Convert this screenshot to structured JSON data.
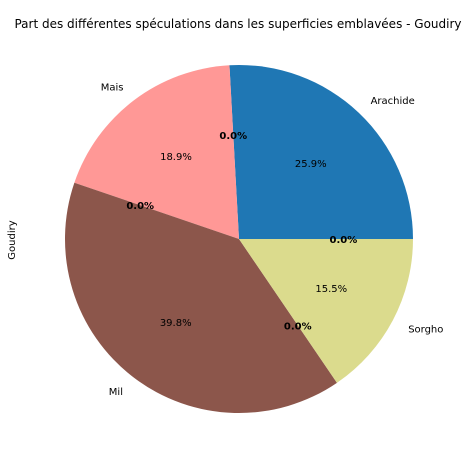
{
  "chart_data": {
    "type": "pie",
    "title": "Part des différentes spéculations dans les superficies emblavées - Goudiry",
    "ylabel": "Goudiry",
    "slices": [
      {
        "label": "Arachide",
        "pct_label": "25.9%",
        "value": 25.9,
        "color": "#1f77b4"
      },
      {
        "label": "",
        "pct_label": "0.0%",
        "value": 0.0,
        "color": "#ff7f0e"
      },
      {
        "label": "Mais",
        "pct_label": "18.9%",
        "value": 18.9,
        "color": "#ff9896"
      },
      {
        "label": "",
        "pct_label": "0.0%",
        "value": 0.0,
        "color": "#2ca02c"
      },
      {
        "label": "Mil",
        "pct_label": "39.8%",
        "value": 39.8,
        "color": "#8c564b"
      },
      {
        "label": "",
        "pct_label": "0.0%",
        "value": 0.0,
        "color": "#9467bd"
      },
      {
        "label": "Sorgho",
        "pct_label": "15.5%",
        "value": 15.5,
        "color": "#dbdb8d"
      },
      {
        "label": "",
        "pct_label": "0.0%",
        "value": 0.0,
        "color": "#17becf"
      }
    ],
    "zero_labels": [
      {
        "text": "0.0%"
      },
      {
        "text": "0.0%"
      },
      {
        "text": "0.0%"
      },
      {
        "text": "0.0%"
      }
    ]
  }
}
